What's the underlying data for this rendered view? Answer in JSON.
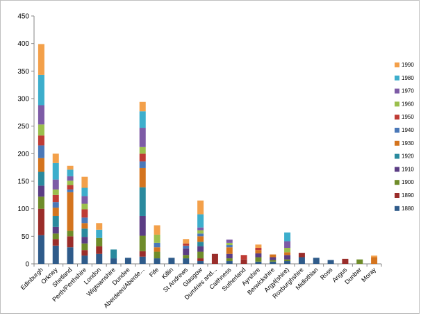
{
  "chart_data": {
    "type": "bar",
    "stacked": true,
    "ylim": [
      0,
      450
    ],
    "yticks": [
      0,
      50,
      100,
      150,
      200,
      250,
      300,
      350,
      400,
      450
    ],
    "grid": false,
    "legend_position": "right",
    "categories": [
      "Edinburgh",
      "Orkney",
      "Shetland",
      "Perth/Perthshire",
      "London",
      "Wigtownshire",
      "Dundee",
      "Aberdeen/Aberde...",
      "Fife",
      "Killin",
      "St Andrews",
      "Glasgow",
      "Dumfries and...",
      "Caithness",
      "Sutherland",
      "Ayrshire",
      "Berwickshire",
      "Argyl(shire)",
      "Roxburghshire",
      "Midlothian",
      "Ross",
      "Angus",
      "Dunbar",
      "Moray"
    ],
    "series": [
      {
        "name": "1880",
        "color": "#2f5b8a",
        "values": [
          52,
          33,
          30,
          15,
          18,
          10,
          11,
          13,
          10,
          11,
          10,
          5,
          0,
          5,
          0,
          4,
          4,
          5,
          12,
          11,
          7,
          0,
          0,
          0
        ]
      },
      {
        "name": "1890",
        "color": "#9a2d2a",
        "values": [
          48,
          12,
          20,
          10,
          14,
          0,
          0,
          10,
          0,
          0,
          0,
          5,
          18,
          0,
          8,
          0,
          0,
          0,
          8,
          0,
          0,
          9,
          0,
          0
        ]
      },
      {
        "name": "1900",
        "color": "#6f8c2a",
        "values": [
          22,
          10,
          10,
          12,
          15,
          0,
          0,
          28,
          12,
          0,
          6,
          12,
          0,
          5,
          0,
          8,
          3,
          3,
          0,
          0,
          0,
          0,
          8,
          0
        ]
      },
      {
        "name": "1910",
        "color": "#5b3d84",
        "values": [
          20,
          12,
          0,
          12,
          0,
          0,
          0,
          36,
          0,
          0,
          12,
          10,
          0,
          8,
          0,
          7,
          5,
          8,
          0,
          0,
          0,
          0,
          0,
          0
        ]
      },
      {
        "name": "1920",
        "color": "#2a8a9e",
        "values": [
          25,
          20,
          0,
          15,
          0,
          16,
          0,
          52,
          0,
          0,
          0,
          8,
          0,
          0,
          0,
          0,
          0,
          0,
          0,
          0,
          0,
          0,
          0,
          0
        ]
      },
      {
        "name": "1930",
        "color": "#d4741e",
        "values": [
          25,
          15,
          70,
          10,
          0,
          0,
          0,
          35,
          8,
          0,
          0,
          10,
          0,
          12,
          0,
          6,
          5,
          5,
          0,
          0,
          0,
          0,
          0,
          12
        ]
      },
      {
        "name": "1940",
        "color": "#4a78b8",
        "values": [
          23,
          10,
          5,
          10,
          0,
          0,
          0,
          12,
          8,
          0,
          5,
          5,
          0,
          4,
          0,
          0,
          0,
          0,
          0,
          0,
          0,
          0,
          0,
          0
        ]
      },
      {
        "name": "1950",
        "color": "#bf3b35",
        "values": [
          18,
          13,
          8,
          15,
          0,
          0,
          0,
          14,
          0,
          0,
          4,
          0,
          0,
          0,
          8,
          4,
          0,
          0,
          0,
          0,
          0,
          0,
          0,
          0
        ]
      },
      {
        "name": "1960",
        "color": "#9bbf4d",
        "values": [
          20,
          10,
          8,
          10,
          0,
          0,
          0,
          12,
          15,
          0,
          0,
          6,
          0,
          4,
          0,
          0,
          0,
          8,
          0,
          0,
          0,
          0,
          0,
          0
        ]
      },
      {
        "name": "1970",
        "color": "#7d5ba6",
        "values": [
          35,
          18,
          8,
          14,
          0,
          0,
          0,
          35,
          0,
          0,
          0,
          5,
          0,
          6,
          0,
          0,
          0,
          12,
          0,
          0,
          0,
          0,
          0,
          0
        ]
      },
      {
        "name": "1980",
        "color": "#3daecc",
        "values": [
          55,
          30,
          12,
          15,
          15,
          0,
          0,
          30,
          0,
          0,
          0,
          24,
          0,
          0,
          0,
          0,
          0,
          16,
          0,
          0,
          0,
          0,
          0,
          0
        ]
      },
      {
        "name": "1990",
        "color": "#f3a04a",
        "values": [
          56,
          17,
          7,
          20,
          12,
          0,
          0,
          17,
          17,
          0,
          8,
          25,
          0,
          0,
          0,
          6,
          0,
          0,
          0,
          0,
          0,
          0,
          0,
          3
        ]
      }
    ]
  }
}
